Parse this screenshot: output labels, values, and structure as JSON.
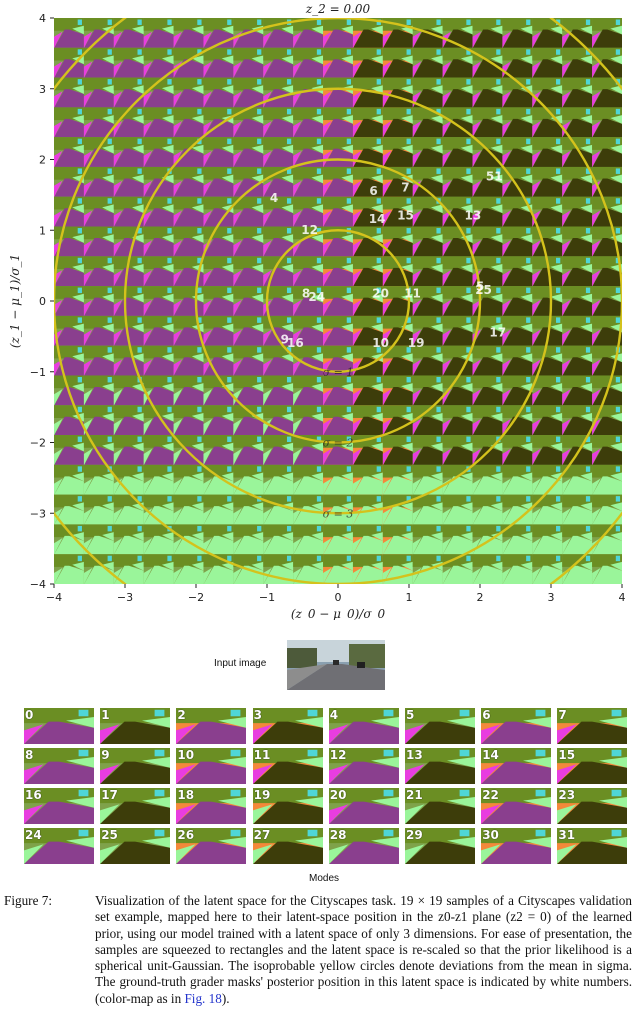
{
  "plot": {
    "title": "z_2 = 0.00",
    "xlabel": "(z_0 − μ_0)/σ_0",
    "ylabel": "(z_1 − μ_1)/σ_1",
    "x_ticks": [
      "−4",
      "−3",
      "−2",
      "−1",
      "0",
      "1",
      "2",
      "3",
      "4"
    ],
    "y_ticks": [
      "4",
      "3",
      "2",
      "1",
      "0",
      "−1",
      "−2",
      "−3",
      "−4"
    ],
    "grid_size": 19,
    "range": [
      -4,
      4
    ],
    "ring_color": "#d4c21c",
    "ring_labels": [
      "σ = 1",
      "σ = 2",
      "σ = 3"
    ],
    "grader_positions": [
      {
        "label": "4",
        "x": -0.9,
        "y": 1.4
      },
      {
        "label": "6",
        "x": 0.5,
        "y": 1.5
      },
      {
        "label": "7",
        "x": 0.95,
        "y": 1.55
      },
      {
        "label": "51",
        "x": 2.2,
        "y": 1.7
      },
      {
        "label": "12",
        "x": -0.4,
        "y": 0.95
      },
      {
        "label": "14",
        "x": 0.55,
        "y": 1.1
      },
      {
        "label": "15",
        "x": 0.95,
        "y": 1.15
      },
      {
        "label": "13",
        "x": 1.9,
        "y": 1.15
      },
      {
        "label": "8",
        "x": -0.45,
        "y": 0.05
      },
      {
        "label": "24",
        "x": -0.3,
        "y": 0.0
      },
      {
        "label": "20",
        "x": 0.6,
        "y": 0.05
      },
      {
        "label": "11",
        "x": 1.05,
        "y": 0.05
      },
      {
        "label": "5",
        "x": 2.0,
        "y": 0.15
      },
      {
        "label": "25",
        "x": 2.05,
        "y": 0.1
      },
      {
        "label": "17",
        "x": 2.25,
        "y": -0.5
      },
      {
        "label": "9",
        "x": -0.75,
        "y": -0.6
      },
      {
        "label": "16",
        "x": -0.6,
        "y": -0.65
      },
      {
        "label": "10",
        "x": 0.6,
        "y": -0.65
      },
      {
        "label": "19",
        "x": 1.1,
        "y": -0.65
      }
    ]
  },
  "input_image_label": "Input image",
  "modes_label": "Modes",
  "modes": [
    "0",
    "1",
    "2",
    "3",
    "4",
    "5",
    "6",
    "7",
    "8",
    "9",
    "10",
    "11",
    "12",
    "13",
    "14",
    "15",
    "16",
    "17",
    "18",
    "19",
    "20",
    "21",
    "22",
    "23",
    "24",
    "25",
    "26",
    "27",
    "28",
    "29",
    "30",
    "31"
  ],
  "caption": {
    "label": "Figure 7:",
    "body": "Visualization of the latent space for the Cityscapes task. 19 × 19 samples of a Cityscapes validation set example, mapped here to their latent-space position in the z0-z1 plane (z2 = 0) of the learned prior, using our model trained with a latent space of only 3 dimensions. For ease of presentation, the samples are squeezed to rectangles and the latent space is re-scaled so that the prior likelihood is a spherical unit-Gaussian. The isoprobable yellow circles denote deviations from the mean in sigma. The ground-truth grader masks' posterior position in this latent space is indicated by white numbers. (color-map as in",
    "link": "Fig. 18",
    "end": ")."
  },
  "colors": {
    "sky": "#7fa24a",
    "road": "#8a3f8e",
    "sidewalk": "#e83de0",
    "vegetation": "#6b8e23",
    "dark_veg": "#3d3d0a",
    "orange": "#f4893a",
    "light_green": "#9af59a",
    "cyan": "#4fd6d6",
    "car": "#0a0a8a"
  }
}
